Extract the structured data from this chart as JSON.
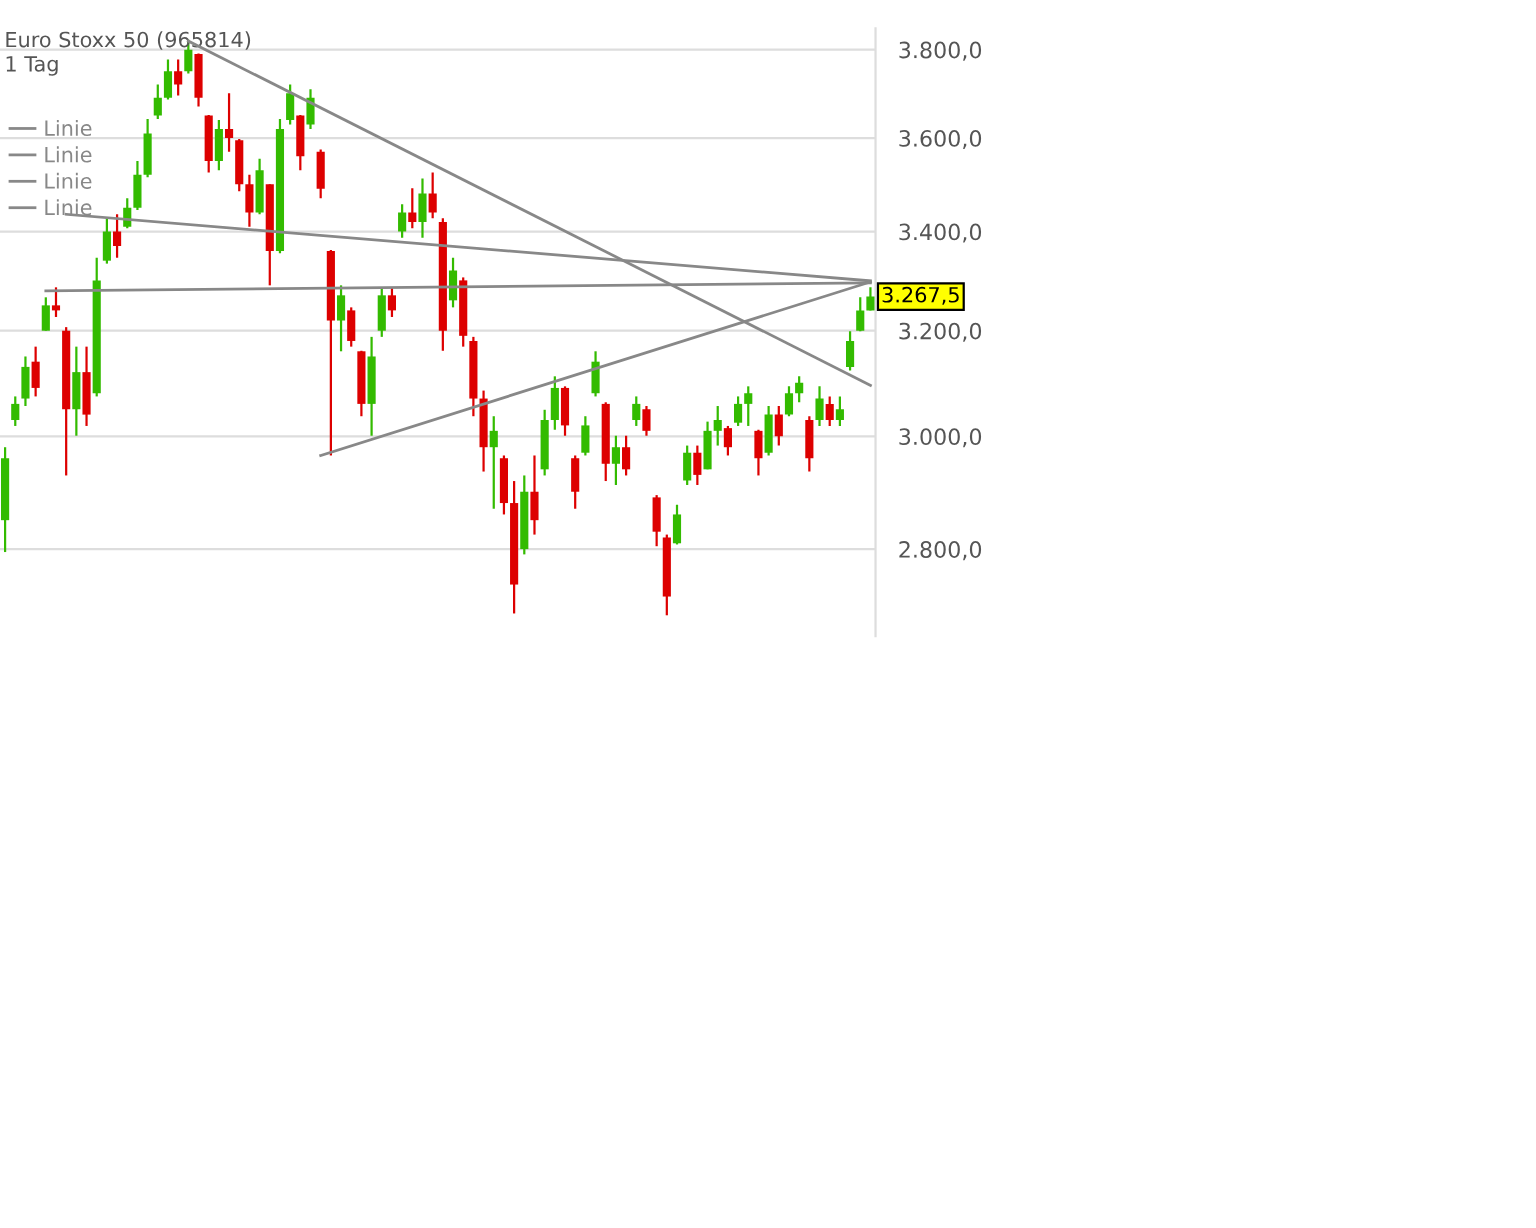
{
  "chart_data": {
    "type": "candlestick",
    "title": "Euro Stoxx 50 (965814)",
    "subtitle": "1 Tag",
    "categories": [
      null,
      null,
      null,
      null,
      null,
      null,
      null,
      null,
      null,
      null,
      null,
      null,
      null,
      null,
      null,
      null,
      null,
      null,
      null,
      null,
      null,
      null,
      null,
      null,
      null,
      null,
      null,
      null,
      null,
      null,
      null,
      null,
      null,
      null,
      null,
      null,
      null,
      null,
      null,
      null,
      null,
      null,
      null,
      null,
      null,
      null,
      null,
      null,
      null,
      null,
      null,
      null,
      null,
      null,
      null,
      null,
      null,
      null,
      null,
      null,
      null,
      null,
      null,
      null,
      null,
      null,
      null,
      null,
      null,
      null,
      null,
      null,
      null,
      null,
      null,
      null,
      null,
      null,
      null,
      null,
      null,
      null,
      null,
      null,
      null,
      null
    ],
    "ohlc": [
      [
        2850,
        2980,
        2795,
        2960
      ],
      [
        3030,
        3074,
        3019,
        3060
      ],
      [
        3070,
        3150,
        3056,
        3130
      ],
      [
        3140,
        3169,
        3074,
        3090
      ],
      [
        3200,
        3266,
        3200,
        3250
      ],
      [
        3250,
        3286,
        3227,
        3240
      ],
      [
        3200,
        3207,
        2929,
        3050
      ],
      [
        3050,
        3169,
        3001,
        3120
      ],
      [
        3120,
        3169,
        3019,
        3040
      ],
      [
        3080,
        3346,
        3074,
        3300
      ],
      [
        3340,
        3428,
        3334,
        3400
      ],
      [
        3400,
        3436,
        3346,
        3370
      ],
      [
        3410,
        3470,
        3407,
        3450
      ],
      [
        3450,
        3550,
        3445,
        3520
      ],
      [
        3520,
        3642,
        3515,
        3610
      ],
      [
        3650,
        3720,
        3642,
        3690
      ],
      [
        3690,
        3777,
        3686,
        3750
      ],
      [
        3750,
        3777,
        3695,
        3720
      ],
      [
        3750,
        3823,
        3745,
        3800
      ],
      [
        3790,
        3791,
        3670,
        3690
      ],
      [
        3650,
        3651,
        3525,
        3550
      ],
      [
        3550,
        3640,
        3530,
        3620
      ],
      [
        3620,
        3700,
        3570,
        3600
      ],
      [
        3595,
        3598,
        3485,
        3500
      ],
      [
        3500,
        3520,
        3410,
        3440
      ],
      [
        3440,
        3555,
        3436,
        3530
      ],
      [
        3500,
        3500,
        3290,
        3360
      ],
      [
        3360,
        3642,
        3355,
        3620
      ],
      [
        3640,
        3720,
        3630,
        3700
      ],
      [
        3650,
        3651,
        3530,
        3560
      ],
      [
        3630,
        3709,
        3620,
        3690
      ],
      [
        3570,
        3575,
        3470,
        3490
      ],
      [
        3360,
        3362,
        2965,
        3220
      ],
      [
        3220,
        3290,
        3160,
        3270
      ],
      [
        3240,
        3246,
        3169,
        3180
      ],
      [
        3160,
        3161,
        3037,
        3060
      ],
      [
        3060,
        3188,
        3001,
        3150
      ],
      [
        3200,
        3286,
        3188,
        3270
      ],
      [
        3270,
        3286,
        3227,
        3240
      ],
      [
        3400,
        3457,
        3387,
        3440
      ],
      [
        3440,
        3491,
        3407,
        3420
      ],
      [
        3420,
        3512,
        3387,
        3480
      ],
      [
        3480,
        3525,
        3428,
        3440
      ],
      [
        3420,
        3428,
        3161,
        3200
      ],
      [
        3260,
        3346,
        3246,
        3320
      ],
      [
        3300,
        3306,
        3169,
        3190
      ],
      [
        3180,
        3188,
        3037,
        3070
      ],
      [
        3070,
        3085,
        2936,
        2980
      ],
      [
        2980,
        3037,
        2870,
        3010
      ],
      [
        2960,
        2965,
        2860,
        2880
      ],
      [
        2880,
        2919,
        2692,
        2740
      ],
      [
        2800,
        2929,
        2791,
        2900
      ],
      [
        2900,
        2965,
        2825,
        2850
      ],
      [
        2940,
        3049,
        2929,
        3030
      ],
      [
        3030,
        3112,
        3012,
        3090
      ],
      [
        3090,
        3093,
        3001,
        3020
      ],
      [
        2960,
        2965,
        2870,
        2900
      ],
      [
        2970,
        3037,
        2965,
        3020
      ],
      [
        3080,
        3160,
        3074,
        3140
      ],
      [
        3060,
        3063,
        2919,
        2950
      ],
      [
        2950,
        3001,
        2912,
        2980
      ],
      [
        2980,
        3001,
        2929,
        2940
      ],
      [
        3030,
        3074,
        3019,
        3060
      ],
      [
        3050,
        3056,
        3001,
        3010
      ],
      [
        2890,
        2894,
        2805,
        2830
      ],
      [
        2820,
        2825,
        2689,
        2720
      ],
      [
        2810,
        2877,
        2808,
        2860
      ],
      [
        2920,
        2983,
        2912,
        2970
      ],
      [
        2970,
        2983,
        2912,
        2930
      ],
      [
        2940,
        3027,
        2940,
        3010
      ],
      [
        3010,
        3056,
        2983,
        3030
      ],
      [
        3015,
        3019,
        2965,
        2980
      ],
      [
        3025,
        3074,
        3019,
        3060
      ],
      [
        3060,
        3093,
        3019,
        3080
      ],
      [
        3010,
        3012,
        2929,
        2960
      ],
      [
        2970,
        3056,
        2965,
        3040
      ],
      [
        3040,
        3056,
        2983,
        3000
      ],
      [
        3040,
        3093,
        3037,
        3080
      ],
      [
        3080,
        3112,
        3063,
        3100
      ],
      [
        3030,
        3037,
        2936,
        2960
      ],
      [
        3030,
        3093,
        3019,
        3070
      ],
      [
        3060,
        3074,
        3019,
        3030
      ],
      [
        3030,
        3074,
        3019,
        3050
      ],
      [
        3130,
        3199,
        3123,
        3180
      ],
      [
        3200,
        3266,
        3199,
        3240
      ],
      [
        3240,
        3286,
        3240,
        3267.5
      ]
    ],
    "colors": [
      "#33bb00",
      "#33bb00",
      "#33bb00",
      "#dd0000",
      "#33bb00",
      "#dd0000",
      "#dd0000",
      "#33bb00",
      "#dd0000",
      "#33bb00",
      "#33bb00",
      "#dd0000",
      "#33bb00",
      "#33bb00",
      "#33bb00",
      "#33bb00",
      "#33bb00",
      "#dd0000",
      "#33bb00",
      "#dd0000",
      "#dd0000",
      "#33bb00",
      "#dd0000",
      "#dd0000",
      "#dd0000",
      "#33bb00",
      "#dd0000",
      "#33bb00",
      "#33bb00",
      "#dd0000",
      "#33bb00",
      "#dd0000",
      "#dd0000",
      "#33bb00",
      "#dd0000",
      "#dd0000",
      "#33bb00",
      "#33bb00",
      "#dd0000",
      "#33bb00",
      "#dd0000",
      "#33bb00",
      "#dd0000",
      "#dd0000",
      "#33bb00",
      "#dd0000",
      "#dd0000",
      "#dd0000",
      "#33bb00",
      "#dd0000",
      "#dd0000",
      "#33bb00",
      "#dd0000",
      "#33bb00",
      "#33bb00",
      "#dd0000",
      "#dd0000",
      "#33bb00",
      "#33bb00",
      "#dd0000",
      "#33bb00",
      "#dd0000",
      "#33bb00",
      "#dd0000",
      "#dd0000",
      "#dd0000",
      "#33bb00",
      "#33bb00",
      "#dd0000",
      "#33bb00",
      "#33bb00",
      "#dd0000",
      "#33bb00",
      "#33bb00",
      "#dd0000",
      "#33bb00",
      "#dd0000",
      "#33bb00",
      "#33bb00",
      "#dd0000",
      "#33bb00",
      "#dd0000",
      "#33bb00",
      "#33bb00",
      "#33bb00",
      "#33bb00"
    ],
    "series": [
      {
        "type": "line",
        "name": "Linie",
        "color": "#888888",
        "values": [
          null,
          null,
          null,
          null,
          null,
          null,
          null,
          null,
          null,
          null,
          null,
          null,
          null,
          null,
          null,
          null,
          null,
          null,
          3820,
          null,
          null,
          null,
          null,
          null,
          null,
          null,
          null,
          null,
          null,
          null,
          null,
          null,
          null,
          null,
          null,
          null,
          null,
          null,
          null,
          null,
          null,
          null,
          null,
          null,
          null,
          null,
          null,
          null,
          null,
          null,
          null,
          null,
          null,
          null,
          null,
          null,
          null,
          null,
          null,
          null,
          null,
          null,
          null,
          null,
          null,
          null,
          null,
          null,
          null,
          null,
          null,
          null,
          null,
          null,
          null,
          null,
          null,
          null,
          null,
          null,
          null,
          null,
          null,
          null,
          null,
          3095
        ]
      },
      {
        "type": "line",
        "name": "Linie",
        "color": "#888888",
        "values": [
          null,
          null,
          null,
          null,
          null,
          null,
          3436,
          null,
          null,
          null,
          null,
          null,
          null,
          null,
          null,
          null,
          null,
          null,
          null,
          null,
          null,
          null,
          null,
          null,
          null,
          null,
          null,
          null,
          null,
          null,
          null,
          null,
          null,
          null,
          null,
          null,
          null,
          null,
          null,
          null,
          null,
          null,
          null,
          null,
          null,
          null,
          null,
          null,
          null,
          null,
          null,
          null,
          null,
          null,
          null,
          null,
          null,
          null,
          null,
          null,
          null,
          null,
          null,
          null,
          null,
          null,
          null,
          null,
          null,
          null,
          null,
          null,
          null,
          null,
          null,
          null,
          null,
          null,
          null,
          null,
          null,
          null,
          null,
          null,
          null,
          3299
        ]
      },
      {
        "type": "line",
        "name": "Linie",
        "color": "#888888",
        "values": [
          null,
          null,
          null,
          null,
          3279,
          null,
          null,
          null,
          null,
          null,
          null,
          null,
          null,
          null,
          null,
          null,
          null,
          null,
          null,
          null,
          null,
          null,
          null,
          null,
          null,
          null,
          null,
          null,
          null,
          null,
          null,
          null,
          null,
          null,
          null,
          null,
          null,
          null,
          null,
          null,
          null,
          null,
          null,
          null,
          null,
          null,
          null,
          null,
          null,
          null,
          null,
          null,
          null,
          null,
          null,
          null,
          null,
          null,
          null,
          null,
          null,
          null,
          null,
          null,
          null,
          null,
          null,
          null,
          null,
          null,
          null,
          null,
          null,
          null,
          null,
          null,
          null,
          null,
          null,
          null,
          null,
          null,
          null,
          null,
          null,
          3295
        ]
      },
      {
        "type": "line",
        "name": "Linie",
        "color": "#888888",
        "values": [
          null,
          null,
          null,
          null,
          null,
          null,
          null,
          null,
          null,
          null,
          null,
          null,
          null,
          null,
          null,
          null,
          null,
          null,
          null,
          null,
          null,
          null,
          null,
          null,
          null,
          null,
          null,
          null,
          null,
          null,
          null,
          2965,
          null,
          null,
          null,
          null,
          null,
          null,
          null,
          null,
          null,
          null,
          null,
          null,
          null,
          null,
          null,
          null,
          null,
          null,
          null,
          null,
          null,
          null,
          null,
          null,
          null,
          null,
          null,
          null,
          null,
          null,
          null,
          null,
          null,
          null,
          null,
          null,
          null,
          null,
          null,
          null,
          null,
          null,
          null,
          null,
          null,
          null,
          null,
          null,
          null,
          null,
          null,
          null,
          null,
          3297
        ]
      }
    ],
    "log": true,
    "ylim": [
      2655,
      3850
    ],
    "yticks": [
      {
        "value": 2800,
        "label": "2.800,0"
      },
      {
        "value": 3000,
        "label": "3.000,0"
      },
      {
        "value": 3200,
        "label": "3.200,0"
      },
      {
        "value": 3400,
        "label": "3.400,0"
      },
      {
        "value": 3600,
        "label": "3.600,0"
      },
      {
        "value": 3800,
        "label": "3.800,0"
      }
    ],
    "grid": "y",
    "legend": "top left",
    "annotations": [
      {
        "text": "3.267,5",
        "y": 3267.5
      }
    ]
  }
}
